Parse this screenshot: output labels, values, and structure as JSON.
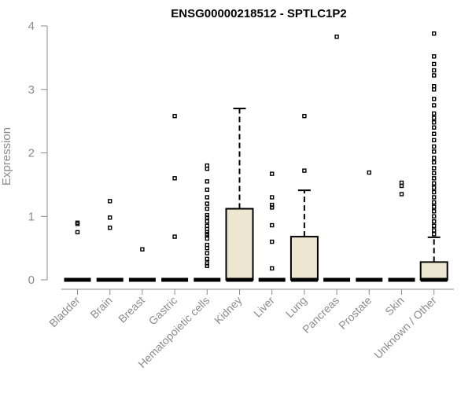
{
  "chart_data": {
    "type": "boxplot",
    "title": "ENSG00000218512 - SPTLC1P2",
    "xlabel": "",
    "ylabel": "Expression",
    "ylim": [
      0,
      4
    ],
    "yticks": [
      "0",
      "1",
      "2",
      "3",
      "4"
    ],
    "grid": false,
    "legend": "none",
    "colors": {
      "box_fill": "#ede7d1",
      "line": "#000000",
      "axis": "#8c8c8c"
    },
    "categories": [
      "Bladder",
      "Brain",
      "Breast",
      "Gastric",
      "Hematopoietic cells",
      "Kidney",
      "Liver",
      "Lung",
      "Pancreas",
      "Prostate",
      "Skin",
      "Unknown / Other"
    ],
    "boxes": [
      {
        "category": "Bladder",
        "min": 0,
        "q1": 0,
        "median": 0,
        "q3": 0,
        "max": 0,
        "outliers": [
          0.75,
          0.88,
          0.9
        ]
      },
      {
        "category": "Brain",
        "min": 0,
        "q1": 0,
        "median": 0,
        "q3": 0,
        "max": 0,
        "outliers": [
          0.82,
          0.98,
          1.24
        ]
      },
      {
        "category": "Breast",
        "min": 0,
        "q1": 0,
        "median": 0,
        "q3": 0,
        "max": 0,
        "outliers": [
          0.48
        ]
      },
      {
        "category": "Gastric",
        "min": 0,
        "q1": 0,
        "median": 0,
        "q3": 0,
        "max": 0,
        "outliers": [
          0.68,
          1.6,
          2.58
        ]
      },
      {
        "category": "Hematopoietic cells",
        "min": 0,
        "q1": 0,
        "median": 0,
        "q3": 0,
        "max": 0,
        "outliers": [
          0.22,
          0.26,
          0.33,
          0.42,
          0.5,
          0.55,
          0.65,
          0.7,
          0.72,
          0.75,
          0.8,
          0.85,
          0.92,
          0.98,
          1.02,
          1.12,
          1.2,
          1.3,
          1.42,
          1.55,
          1.75,
          1.8
        ]
      },
      {
        "category": "Kidney",
        "min": 0,
        "q1": 0,
        "median": 0,
        "q3": 1.12,
        "max": 2.7,
        "outliers": []
      },
      {
        "category": "Liver",
        "min": 0,
        "q1": 0,
        "median": 0,
        "q3": 0,
        "max": 0,
        "outliers": [
          0.18,
          0.6,
          0.86,
          1.14,
          1.18,
          1.3,
          1.67
        ]
      },
      {
        "category": "Lung",
        "min": 0,
        "q1": 0,
        "median": 0,
        "q3": 0.68,
        "max": 1.41,
        "outliers": [
          1.72,
          2.58
        ]
      },
      {
        "category": "Pancreas",
        "min": 0,
        "q1": 0,
        "median": 0,
        "q3": 0,
        "max": 0,
        "outliers": [
          3.83
        ]
      },
      {
        "category": "Prostate",
        "min": 0,
        "q1": 0,
        "median": 0,
        "q3": 0,
        "max": 0,
        "outliers": [
          1.69
        ]
      },
      {
        "category": "Skin",
        "min": 0,
        "q1": 0,
        "median": 0,
        "q3": 0,
        "max": 0,
        "outliers": [
          1.35,
          1.48,
          1.53
        ]
      },
      {
        "category": "Unknown / Other",
        "min": 0,
        "q1": 0,
        "median": 0,
        "q3": 0.28,
        "max": 0.67,
        "outliers": [
          0.72,
          0.78,
          0.85,
          0.92,
          1.0,
          1.08,
          1.15,
          1.22,
          1.3,
          1.38,
          1.45,
          1.52,
          1.6,
          1.68,
          1.76,
          1.85,
          1.92,
          2.02,
          2.1,
          2.2,
          2.3,
          2.4,
          2.48,
          2.55,
          2.62,
          2.75,
          2.85,
          3.0,
          3.05,
          3.22,
          3.3,
          3.4,
          3.52,
          3.88
        ]
      }
    ]
  }
}
